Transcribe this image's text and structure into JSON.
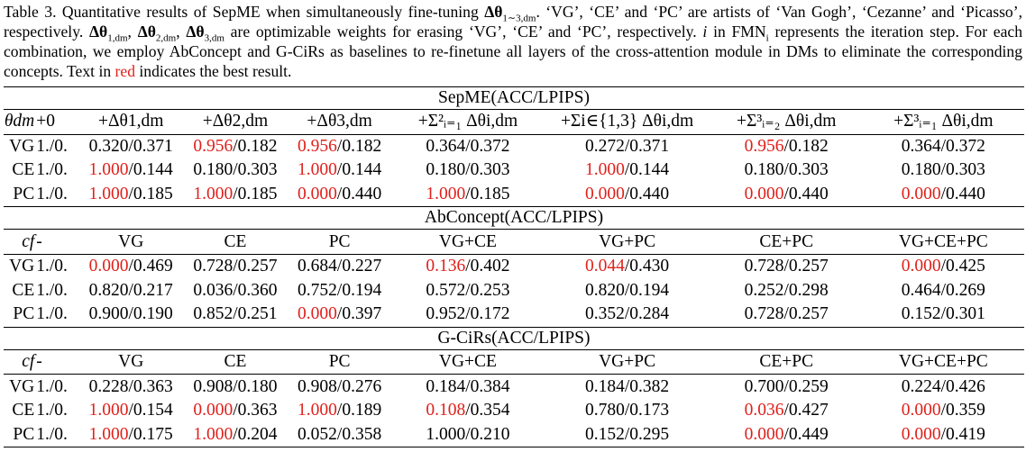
{
  "caption": {
    "line1_a": "Table 3. Quantitative results of SepME when simultaneously fine-tuning ",
    "line1_b": "Δθ",
    "line1_c": "1∼3,dm",
    "line1_d": ". ‘VG’, ‘CE’ and ‘PC’ are artists of ‘Van Gogh’,",
    "line2_a": "‘Cezanne’ and ‘Picasso’, respectively. ",
    "line2_b": "Δθ",
    "line2_c": "1,dm",
    "line2_d": ", ",
    "line2_e": "Δθ",
    "line2_f": "2,dm",
    "line2_g": ", ",
    "line2_h": "Δθ",
    "line2_i": "3,dm",
    "line2_j": " are optimizable weights for erasing ‘VG’, ‘CE’ and ‘PC’, respectively. ",
    "line2_k": "i",
    "line3_a": "in FMN",
    "line3_b": "i",
    "line3_c": " represents the iteration step. For each combination, we employ AbConcept and G-CiRs as baselines to re-finetune all layers of",
    "line4_a": "the cross-attention module in DMs to eliminate the corresponding concepts. Text in ",
    "line4_red": "red",
    "line4_b": " indicates the best result."
  },
  "sections": [
    {
      "title": "SepME(ACC/LPIPS)",
      "row_label_symbol": "θdm",
      "headers": [
        "+0",
        "+Δθ1,dm",
        "+Δθ2,dm",
        "+Δθ3,dm",
        "+Σ²ᵢ₌₁ Δθi,dm",
        "+Σi∈{1,3} Δθi,dm",
        "+Σ³ᵢ₌₂ Δθi,dm",
        "+Σ³ᵢ₌₁ Δθi,dm"
      ],
      "rows": [
        {
          "label": "VG",
          "cells": [
            {
              "best": "",
              "rest": "1./0."
            },
            {
              "best": "",
              "rest": "0.320/0.371"
            },
            {
              "best": "0.956",
              "rest": "/0.182"
            },
            {
              "best": "0.956",
              "rest": "/0.182"
            },
            {
              "best": "",
              "rest": "0.364/0.372"
            },
            {
              "best": "",
              "rest": "0.272/0.371"
            },
            {
              "best": "0.956",
              "rest": "/0.182"
            },
            {
              "best": "",
              "rest": "0.364/0.372"
            }
          ]
        },
        {
          "label": "CE",
          "cells": [
            {
              "best": "",
              "rest": "1./0."
            },
            {
              "best": "1.000",
              "rest": "/0.144"
            },
            {
              "best": "",
              "rest": "0.180/0.303"
            },
            {
              "best": "1.000",
              "rest": "/0.144"
            },
            {
              "best": "",
              "rest": "0.180/0.303"
            },
            {
              "best": "1.000",
              "rest": "/0.144"
            },
            {
              "best": "",
              "rest": "0.180/0.303"
            },
            {
              "best": "",
              "rest": "0.180/0.303"
            }
          ]
        },
        {
          "label": "PC",
          "cells": [
            {
              "best": "",
              "rest": "1./0."
            },
            {
              "best": "1.000",
              "rest": "/0.185"
            },
            {
              "best": "1.000",
              "rest": "/0.185"
            },
            {
              "best": "0.000",
              "rest": "/0.440"
            },
            {
              "best": "1.000",
              "rest": "/0.185"
            },
            {
              "best": "0.000",
              "rest": "/0.440"
            },
            {
              "best": "0.000",
              "rest": "/0.440"
            },
            {
              "best": "0.000",
              "rest": "/0.440"
            }
          ]
        }
      ]
    },
    {
      "title": "AbConcept(ACC/LPIPS)",
      "row_label_symbol": "cf",
      "headers": [
        "-",
        "VG",
        "CE",
        "PC",
        "VG+CE",
        "VG+PC",
        "CE+PC",
        "VG+CE+PC"
      ],
      "rows": [
        {
          "label": "VG",
          "cells": [
            {
              "best": "",
              "rest": "1./0."
            },
            {
              "best": "0.000",
              "rest": "/0.469"
            },
            {
              "best": "",
              "rest": "0.728/0.257"
            },
            {
              "best": "",
              "rest": "0.684/0.227"
            },
            {
              "best": "0.136",
              "rest": "/0.402"
            },
            {
              "best": "0.044",
              "rest": "/0.430"
            },
            {
              "best": "",
              "rest": "0.728/0.257"
            },
            {
              "best": "0.000",
              "rest": "/0.425"
            }
          ]
        },
        {
          "label": "CE",
          "cells": [
            {
              "best": "",
              "rest": "1./0."
            },
            {
              "best": "",
              "rest": "0.820/0.217"
            },
            {
              "best": "",
              "rest": "0.036/0.360"
            },
            {
              "best": "",
              "rest": "0.752/0.194"
            },
            {
              "best": "",
              "rest": "0.572/0.253"
            },
            {
              "best": "",
              "rest": "0.820/0.194"
            },
            {
              "best": "",
              "rest": "0.252/0.298"
            },
            {
              "best": "",
              "rest": "0.464/0.269"
            }
          ]
        },
        {
          "label": "PC",
          "cells": [
            {
              "best": "",
              "rest": "1./0."
            },
            {
              "best": "",
              "rest": "0.900/0.190"
            },
            {
              "best": "",
              "rest": "0.852/0.251"
            },
            {
              "best": "0.000",
              "rest": "/0.397"
            },
            {
              "best": "",
              "rest": "0.952/0.172"
            },
            {
              "best": "",
              "rest": "0.352/0.284"
            },
            {
              "best": "",
              "rest": "0.728/0.257"
            },
            {
              "best": "",
              "rest": "0.152/0.301"
            }
          ]
        }
      ]
    },
    {
      "title": "G-CiRs(ACC/LPIPS)",
      "row_label_symbol": "cf",
      "headers": [
        "-",
        "VG",
        "CE",
        "PC",
        "VG+CE",
        "VG+PC",
        "CE+PC",
        "VG+CE+PC"
      ],
      "rows": [
        {
          "label": "VG",
          "cells": [
            {
              "best": "",
              "rest": "1./0."
            },
            {
              "best": "",
              "rest": "0.228/0.363"
            },
            {
              "best": "",
              "rest": "0.908/0.180"
            },
            {
              "best": "",
              "rest": "0.908/0.276"
            },
            {
              "best": "",
              "rest": "0.184/0.384"
            },
            {
              "best": "",
              "rest": "0.184/0.382"
            },
            {
              "best": "",
              "rest": "0.700/0.259"
            },
            {
              "best": "",
              "rest": "0.224/0.426"
            }
          ]
        },
        {
          "label": "CE",
          "cells": [
            {
              "best": "",
              "rest": "1./0."
            },
            {
              "best": "1.000",
              "rest": "/0.154"
            },
            {
              "best": "0.000",
              "rest": "/0.363"
            },
            {
              "best": "1.000",
              "rest": "/0.189"
            },
            {
              "best": "0.108",
              "rest": "/0.354"
            },
            {
              "best": "",
              "rest": "0.780/0.173"
            },
            {
              "best": "0.036",
              "rest": "/0.427"
            },
            {
              "best": "0.000",
              "rest": "/0.359"
            }
          ]
        },
        {
          "label": "PC",
          "cells": [
            {
              "best": "",
              "rest": "1./0."
            },
            {
              "best": "1.000",
              "rest": "/0.175"
            },
            {
              "best": "1.000",
              "rest": "/0.204"
            },
            {
              "best": "",
              "rest": "0.052/0.358"
            },
            {
              "best": "",
              "rest": "1.000/0.210"
            },
            {
              "best": "",
              "rest": "0.152/0.295"
            },
            {
              "best": "0.000",
              "rest": "/0.449"
            },
            {
              "best": "0.000",
              "rest": "/0.419"
            }
          ]
        }
      ]
    }
  ],
  "colors": {
    "best": "#e0201b",
    "text": "#000000"
  }
}
